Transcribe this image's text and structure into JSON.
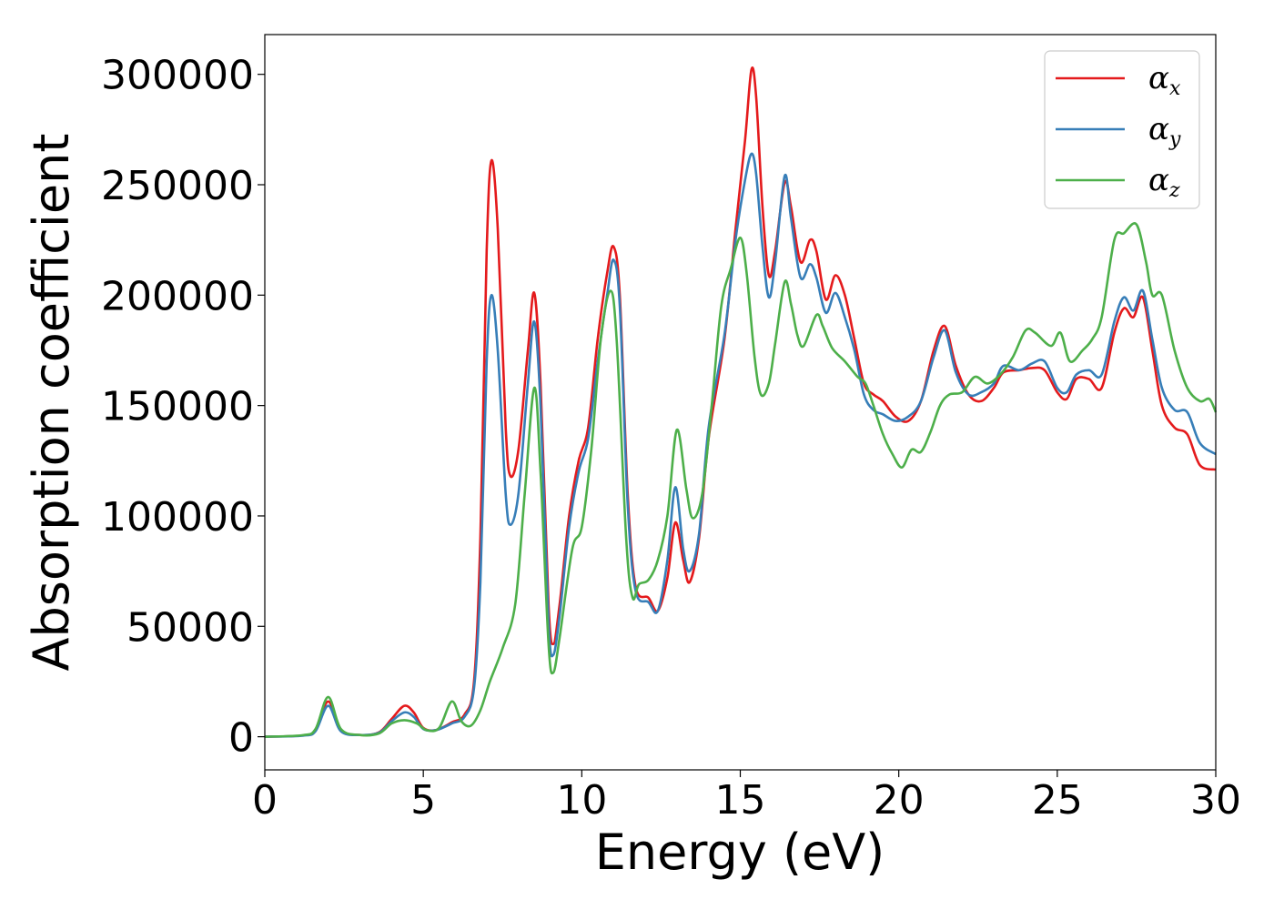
{
  "chart_data": {
    "type": "line",
    "xlabel": "Energy (eV)",
    "ylabel": "Absorption coefficient",
    "xlim": [
      0,
      30
    ],
    "ylim": [
      -15000,
      318000
    ],
    "xticks": [
      0,
      5,
      10,
      15,
      20,
      25,
      30
    ],
    "xtick_labels": [
      "0",
      "5",
      "10",
      "15",
      "20",
      "25",
      "30"
    ],
    "yticks": [
      0,
      50000,
      100000,
      150000,
      200000,
      250000,
      300000
    ],
    "ytick_labels": [
      "0",
      "50000",
      "100000",
      "150000",
      "200000",
      "250000",
      "300000"
    ],
    "grid": false,
    "legend_position": "top-right",
    "series": [
      {
        "name": "α_x",
        "symbol": "α",
        "sub": "x",
        "color": "#e41a1c",
        "points": [
          [
            0,
            0
          ],
          [
            1.2,
            600
          ],
          [
            1.6,
            3000
          ],
          [
            2.0,
            16000
          ],
          [
            2.4,
            3000
          ],
          [
            3.0,
            800
          ],
          [
            3.6,
            2000
          ],
          [
            4.0,
            8000
          ],
          [
            4.4,
            14000
          ],
          [
            4.7,
            11000
          ],
          [
            5.0,
            4000
          ],
          [
            5.4,
            3000
          ],
          [
            5.9,
            6500
          ],
          [
            6.3,
            10000
          ],
          [
            6.6,
            25000
          ],
          [
            6.8,
            90000
          ],
          [
            7.0,
            220000
          ],
          [
            7.15,
            261000
          ],
          [
            7.35,
            230000
          ],
          [
            7.6,
            140000
          ],
          [
            7.75,
            118000
          ],
          [
            8.0,
            130000
          ],
          [
            8.3,
            175000
          ],
          [
            8.5,
            201000
          ],
          [
            8.7,
            160000
          ],
          [
            8.95,
            60000
          ],
          [
            9.1,
            42000
          ],
          [
            9.3,
            60000
          ],
          [
            9.6,
            100000
          ],
          [
            9.9,
            125000
          ],
          [
            10.2,
            140000
          ],
          [
            10.5,
            180000
          ],
          [
            10.8,
            210000
          ],
          [
            11.0,
            222000
          ],
          [
            11.2,
            200000
          ],
          [
            11.45,
            110000
          ],
          [
            11.7,
            68000
          ],
          [
            12.1,
            63000
          ],
          [
            12.4,
            57000
          ],
          [
            12.7,
            72000
          ],
          [
            12.95,
            97000
          ],
          [
            13.2,
            80000
          ],
          [
            13.4,
            70000
          ],
          [
            13.7,
            90000
          ],
          [
            14.0,
            135000
          ],
          [
            14.5,
            180000
          ],
          [
            14.85,
            230000
          ],
          [
            15.15,
            270000
          ],
          [
            15.35,
            302000
          ],
          [
            15.5,
            290000
          ],
          [
            15.7,
            240000
          ],
          [
            15.9,
            209000
          ],
          [
            16.1,
            220000
          ],
          [
            16.4,
            251000
          ],
          [
            16.6,
            240000
          ],
          [
            16.9,
            215000
          ],
          [
            17.2,
            225000
          ],
          [
            17.4,
            220000
          ],
          [
            17.7,
            198000
          ],
          [
            18.0,
            209000
          ],
          [
            18.3,
            200000
          ],
          [
            18.6,
            180000
          ],
          [
            18.9,
            160000
          ],
          [
            19.2,
            155000
          ],
          [
            19.5,
            152000
          ],
          [
            19.9,
            145000
          ],
          [
            20.3,
            143000
          ],
          [
            20.7,
            152000
          ],
          [
            21.1,
            175000
          ],
          [
            21.45,
            186000
          ],
          [
            21.8,
            168000
          ],
          [
            22.2,
            155000
          ],
          [
            22.6,
            152000
          ],
          [
            23.0,
            158000
          ],
          [
            23.3,
            165000
          ],
          [
            23.8,
            166000
          ],
          [
            24.2,
            167000
          ],
          [
            24.6,
            166000
          ],
          [
            25.0,
            156000
          ],
          [
            25.3,
            153000
          ],
          [
            25.6,
            162000
          ],
          [
            26.0,
            162000
          ],
          [
            26.4,
            158000
          ],
          [
            26.8,
            183000
          ],
          [
            27.1,
            194000
          ],
          [
            27.4,
            190000
          ],
          [
            27.7,
            199000
          ],
          [
            28.0,
            175000
          ],
          [
            28.3,
            150000
          ],
          [
            28.7,
            140000
          ],
          [
            29.1,
            137000
          ],
          [
            29.5,
            123000
          ],
          [
            30,
            121000
          ]
        ]
      },
      {
        "name": "α_y",
        "symbol": "α",
        "sub": "y",
        "color": "#377eb8",
        "points": [
          [
            0,
            0
          ],
          [
            1.2,
            500
          ],
          [
            1.6,
            2500
          ],
          [
            2.0,
            14000
          ],
          [
            2.4,
            2500
          ],
          [
            3.0,
            800
          ],
          [
            3.6,
            1800
          ],
          [
            4.0,
            7000
          ],
          [
            4.4,
            11000
          ],
          [
            4.7,
            9000
          ],
          [
            5.0,
            3500
          ],
          [
            5.4,
            3000
          ],
          [
            5.9,
            6000
          ],
          [
            6.3,
            9000
          ],
          [
            6.6,
            22000
          ],
          [
            6.8,
            70000
          ],
          [
            7.0,
            170000
          ],
          [
            7.15,
            200000
          ],
          [
            7.35,
            175000
          ],
          [
            7.6,
            110000
          ],
          [
            7.75,
            96000
          ],
          [
            8.0,
            110000
          ],
          [
            8.3,
            160000
          ],
          [
            8.5,
            188000
          ],
          [
            8.7,
            150000
          ],
          [
            8.95,
            52000
          ],
          [
            9.1,
            37000
          ],
          [
            9.3,
            55000
          ],
          [
            9.6,
            95000
          ],
          [
            9.9,
            120000
          ],
          [
            10.2,
            135000
          ],
          [
            10.5,
            170000
          ],
          [
            10.8,
            200000
          ],
          [
            11.0,
            216000
          ],
          [
            11.2,
            195000
          ],
          [
            11.45,
            105000
          ],
          [
            11.7,
            66000
          ],
          [
            12.1,
            61000
          ],
          [
            12.4,
            57000
          ],
          [
            12.7,
            80000
          ],
          [
            12.95,
            113000
          ],
          [
            13.2,
            85000
          ],
          [
            13.4,
            75000
          ],
          [
            13.7,
            92000
          ],
          [
            14.0,
            140000
          ],
          [
            14.5,
            182000
          ],
          [
            14.85,
            225000
          ],
          [
            15.15,
            252000
          ],
          [
            15.35,
            264000
          ],
          [
            15.5,
            255000
          ],
          [
            15.7,
            222000
          ],
          [
            15.9,
            199000
          ],
          [
            16.1,
            215000
          ],
          [
            16.4,
            254000
          ],
          [
            16.6,
            235000
          ],
          [
            16.9,
            208000
          ],
          [
            17.2,
            214000
          ],
          [
            17.4,
            208000
          ],
          [
            17.7,
            192000
          ],
          [
            18.0,
            201000
          ],
          [
            18.3,
            190000
          ],
          [
            18.6,
            175000
          ],
          [
            18.9,
            155000
          ],
          [
            19.2,
            148000
          ],
          [
            19.5,
            146000
          ],
          [
            19.9,
            143000
          ],
          [
            20.3,
            145000
          ],
          [
            20.7,
            152000
          ],
          [
            21.1,
            172000
          ],
          [
            21.45,
            184000
          ],
          [
            21.8,
            165000
          ],
          [
            22.2,
            155000
          ],
          [
            22.6,
            156000
          ],
          [
            23.0,
            160000
          ],
          [
            23.3,
            168000
          ],
          [
            23.8,
            166000
          ],
          [
            24.2,
            169000
          ],
          [
            24.6,
            170000
          ],
          [
            25.0,
            158000
          ],
          [
            25.3,
            156000
          ],
          [
            25.6,
            164000
          ],
          [
            26.0,
            166000
          ],
          [
            26.4,
            164000
          ],
          [
            26.8,
            188000
          ],
          [
            27.1,
            199000
          ],
          [
            27.4,
            193000
          ],
          [
            27.7,
            202000
          ],
          [
            28.0,
            180000
          ],
          [
            28.3,
            158000
          ],
          [
            28.7,
            148000
          ],
          [
            29.1,
            147000
          ],
          [
            29.5,
            133000
          ],
          [
            30,
            128000
          ]
        ]
      },
      {
        "name": "α_z",
        "symbol": "α",
        "sub": "z",
        "color": "#4daf4a",
        "points": [
          [
            0,
            0
          ],
          [
            1.2,
            700
          ],
          [
            1.6,
            3500
          ],
          [
            2.0,
            18000
          ],
          [
            2.4,
            3500
          ],
          [
            3.0,
            800
          ],
          [
            3.6,
            1500
          ],
          [
            4.0,
            6000
          ],
          [
            4.4,
            7500
          ],
          [
            4.8,
            6000
          ],
          [
            5.1,
            3000
          ],
          [
            5.5,
            4000
          ],
          [
            5.9,
            16000
          ],
          [
            6.2,
            7000
          ],
          [
            6.5,
            5000
          ],
          [
            6.8,
            12000
          ],
          [
            7.1,
            25000
          ],
          [
            7.5,
            40000
          ],
          [
            7.9,
            60000
          ],
          [
            8.2,
            110000
          ],
          [
            8.5,
            158000
          ],
          [
            8.7,
            120000
          ],
          [
            8.95,
            42000
          ],
          [
            9.1,
            29000
          ],
          [
            9.3,
            45000
          ],
          [
            9.7,
            85000
          ],
          [
            10.0,
            95000
          ],
          [
            10.3,
            130000
          ],
          [
            10.6,
            180000
          ],
          [
            10.9,
            202000
          ],
          [
            11.1,
            180000
          ],
          [
            11.4,
            90000
          ],
          [
            11.6,
            63000
          ],
          [
            11.8,
            69000
          ],
          [
            12.1,
            71000
          ],
          [
            12.4,
            80000
          ],
          [
            12.7,
            100000
          ],
          [
            13.0,
            139000
          ],
          [
            13.3,
            112000
          ],
          [
            13.5,
            99000
          ],
          [
            13.8,
            110000
          ],
          [
            14.1,
            150000
          ],
          [
            14.4,
            195000
          ],
          [
            14.7,
            212000
          ],
          [
            15.0,
            226000
          ],
          [
            15.2,
            210000
          ],
          [
            15.45,
            172000
          ],
          [
            15.65,
            155000
          ],
          [
            15.9,
            160000
          ],
          [
            16.1,
            178000
          ],
          [
            16.4,
            206000
          ],
          [
            16.6,
            196000
          ],
          [
            16.8,
            182000
          ],
          [
            17.0,
            177000
          ],
          [
            17.4,
            191000
          ],
          [
            17.6,
            186000
          ],
          [
            17.9,
            176000
          ],
          [
            18.3,
            170000
          ],
          [
            18.7,
            163000
          ],
          [
            18.95,
            160000
          ],
          [
            19.2,
            150000
          ],
          [
            19.5,
            137000
          ],
          [
            19.8,
            128000
          ],
          [
            20.1,
            122000
          ],
          [
            20.4,
            130000
          ],
          [
            20.7,
            129000
          ],
          [
            21.0,
            138000
          ],
          [
            21.3,
            150000
          ],
          [
            21.6,
            155000
          ],
          [
            22.0,
            156000
          ],
          [
            22.4,
            163000
          ],
          [
            22.8,
            160000
          ],
          [
            23.2,
            164000
          ],
          [
            23.6,
            172000
          ],
          [
            24.0,
            184000
          ],
          [
            24.3,
            183000
          ],
          [
            24.8,
            177000
          ],
          [
            25.1,
            183000
          ],
          [
            25.4,
            170000
          ],
          [
            25.8,
            175000
          ],
          [
            26.1,
            180000
          ],
          [
            26.4,
            190000
          ],
          [
            26.8,
            225000
          ],
          [
            27.1,
            228000
          ],
          [
            27.5,
            232000
          ],
          [
            27.8,
            215000
          ],
          [
            28.0,
            200000
          ],
          [
            28.3,
            200000
          ],
          [
            28.7,
            175000
          ],
          [
            29.1,
            158000
          ],
          [
            29.5,
            152000
          ],
          [
            29.8,
            153000
          ],
          [
            30,
            147000
          ]
        ]
      }
    ]
  }
}
